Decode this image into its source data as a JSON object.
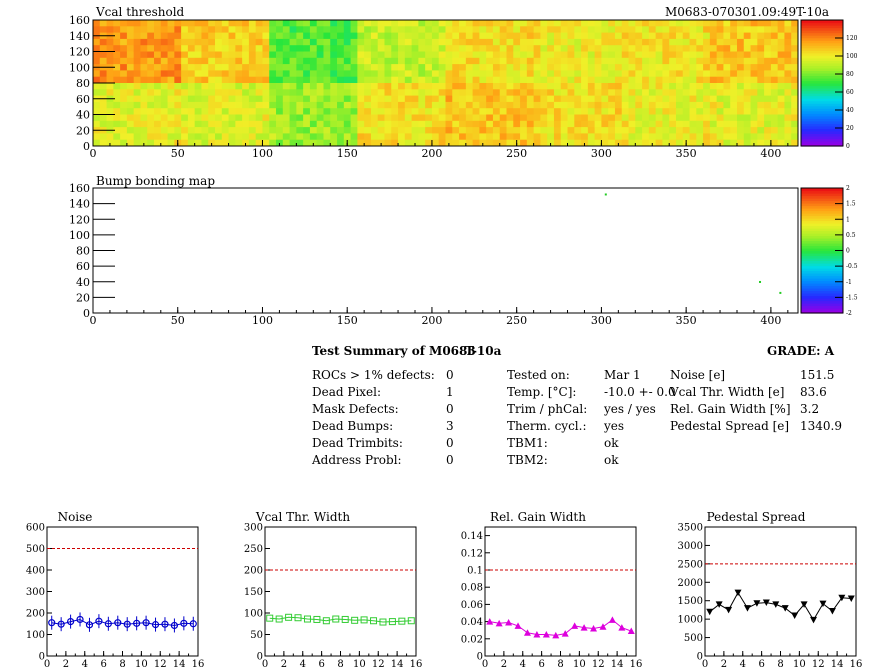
{
  "header": {
    "title": "Vcal threshold",
    "run_label": "M0683-070301.09:49T-10a"
  },
  "bump_title": "Bump bonding map",
  "summary": {
    "title": "Test Summary of M0683",
    "test_label": "T-10a",
    "grade": "GRADE:  A",
    "col1": [
      {
        "label": "ROCs > 1% defects:",
        "value": "0"
      },
      {
        "label": "Dead Pixel:",
        "value": "1"
      },
      {
        "label": "Mask Defects:",
        "value": "0"
      },
      {
        "label": "Dead Bumps:",
        "value": "3"
      },
      {
        "label": "Dead Trimbits:",
        "value": "0"
      },
      {
        "label": "Address Probl:",
        "value": "0"
      }
    ],
    "col2": [
      {
        "label": "Tested on:",
        "value": "Mar 1"
      },
      {
        "label": "Temp. [°C]:",
        "value": "-10.0 +- 0.0"
      },
      {
        "label": "Trim / phCal:",
        "value": "yes / yes"
      },
      {
        "label": "Therm. cycl.:",
        "value": "yes"
      },
      {
        "label": "TBM1:",
        "value": "ok"
      },
      {
        "label": "TBM2:",
        "value": "ok"
      }
    ],
    "col3": [
      {
        "label": "Noise [e]",
        "value": "151.5"
      },
      {
        "label": "Vcal Thr. Width [e]",
        "value": "83.6"
      },
      {
        "label": "Rel. Gain Width [%]",
        "value": "3.2"
      },
      {
        "label": "Pedestal Spread [e]",
        "value": "1340.9"
      }
    ]
  },
  "colors": {
    "noise": "#0000cc",
    "vcal": "#33cc33",
    "gain": "#dd00dd",
    "pedestal": "#000000",
    "limit": "#cc0000"
  },
  "chart_data": [
    {
      "type": "heatmap",
      "title": "Vcal threshold",
      "x_ticks": [
        "0",
        "50",
        "100",
        "150",
        "200",
        "250",
        "300",
        "350",
        "400"
      ],
      "y_ticks": [
        "0",
        "20",
        "40",
        "60",
        "80",
        "100",
        "120",
        "140",
        "160"
      ],
      "xlim": [
        0,
        416
      ],
      "ylim": [
        0,
        160
      ],
      "zlim": [
        0,
        140
      ],
      "z_ticks": [
        "0",
        "20",
        "40",
        "60",
        "80",
        "100",
        "120"
      ],
      "roc_mean_top": [
        118,
        108,
        75,
        92,
        104,
        100,
        103,
        110
      ],
      "roc_mean_bottom": [
        98,
        96,
        85,
        104,
        110,
        104,
        100,
        98
      ]
    },
    {
      "type": "heatmap",
      "title": "Bump bonding map",
      "x_ticks": [
        "0",
        "50",
        "100",
        "150",
        "200",
        "250",
        "300",
        "350",
        "400"
      ],
      "y_ticks": [
        "0",
        "20",
        "40",
        "60",
        "80",
        "100",
        "120",
        "140",
        "160"
      ],
      "xlim": [
        0,
        416
      ],
      "ylim": [
        0,
        160
      ],
      "zlim": [
        -2,
        2
      ],
      "z_ticks": [
        "-2",
        "-1.5",
        "-1",
        "-0.5",
        "0",
        "0.5",
        "1",
        "1.5",
        "2"
      ],
      "points": [
        [
          302,
          153
        ],
        [
          393,
          41
        ],
        [
          405,
          27
        ]
      ]
    },
    {
      "type": "scatter",
      "title": "Noise",
      "x": [
        0,
        1,
        2,
        3,
        4,
        5,
        6,
        7,
        8,
        9,
        10,
        11,
        12,
        13,
        14,
        15
      ],
      "y": [
        155,
        148,
        160,
        170,
        145,
        162,
        150,
        155,
        148,
        152,
        155,
        146,
        148,
        142,
        152,
        150
      ],
      "xlim": [
        0,
        16
      ],
      "ylim": [
        0,
        600
      ],
      "x_ticks": [
        "0",
        "2",
        "4",
        "6",
        "8",
        "10",
        "12",
        "14",
        "16"
      ],
      "y_ticks": [
        "0",
        "100",
        "200",
        "300",
        "400",
        "500",
        "600"
      ],
      "limit": 500,
      "marker": "circle",
      "color": "#0000cc"
    },
    {
      "type": "scatter",
      "title": "Vcal Thr. Width",
      "x": [
        0,
        1,
        2,
        3,
        4,
        5,
        6,
        7,
        8,
        9,
        10,
        11,
        12,
        13,
        14,
        15
      ],
      "y": [
        88,
        86,
        90,
        89,
        86,
        85,
        82,
        86,
        85,
        83,
        84,
        82,
        79,
        80,
        81,
        82
      ],
      "xlim": [
        0,
        16
      ],
      "ylim": [
        0,
        300
      ],
      "x_ticks": [
        "0",
        "2",
        "4",
        "6",
        "8",
        "10",
        "12",
        "14",
        "16"
      ],
      "y_ticks": [
        "0",
        "50",
        "100",
        "150",
        "200",
        "250",
        "300"
      ],
      "limit": 200,
      "marker": "square",
      "color": "#33cc33"
    },
    {
      "type": "line",
      "title": "Rel. Gain Width",
      "x": [
        0,
        1,
        2,
        3,
        4,
        5,
        6,
        7,
        8,
        9,
        10,
        11,
        12,
        13,
        14,
        15
      ],
      "y": [
        0.04,
        0.038,
        0.039,
        0.035,
        0.027,
        0.025,
        0.025,
        0.024,
        0.026,
        0.035,
        0.033,
        0.032,
        0.034,
        0.042,
        0.033,
        0.029
      ],
      "xlim": [
        0,
        16
      ],
      "ylim": [
        0,
        0.15
      ],
      "x_ticks": [
        "0",
        "2",
        "4",
        "6",
        "8",
        "10",
        "12",
        "14",
        "16"
      ],
      "y_ticks": [
        "0",
        "0.02",
        "0.04",
        "0.06",
        "0.08",
        "0.1",
        "0.12",
        "0.14"
      ],
      "limit": 0.1,
      "marker": "triangle",
      "color": "#dd00dd"
    },
    {
      "type": "line",
      "title": "Pedestal Spread",
      "x": [
        0,
        1,
        2,
        3,
        4,
        5,
        6,
        7,
        8,
        9,
        10,
        11,
        12,
        13,
        14,
        15
      ],
      "y": [
        1200,
        1400,
        1250,
        1720,
        1300,
        1430,
        1450,
        1400,
        1300,
        1100,
        1400,
        980,
        1420,
        1220,
        1580,
        1560
      ],
      "xlim": [
        0,
        16
      ],
      "ylim": [
        0,
        3500
      ],
      "x_ticks": [
        "0",
        "2",
        "4",
        "6",
        "8",
        "10",
        "12",
        "14",
        "16"
      ],
      "y_ticks": [
        "0",
        "500",
        "1000",
        "1500",
        "2000",
        "2500",
        "3000",
        "3500"
      ],
      "limit": 2500,
      "marker": "triangle-down",
      "color": "#000000"
    }
  ]
}
